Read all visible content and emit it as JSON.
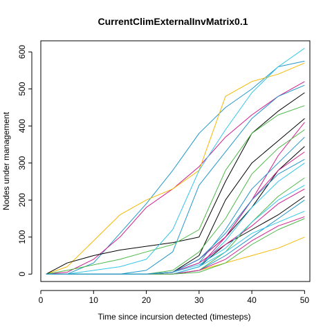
{
  "chart_data": {
    "type": "line",
    "title": "CurrentClimExternalInvMatrix0.1",
    "xlabel": "Time since incursion detected (timesteps)",
    "ylabel": "Nodes under management",
    "xlim": [
      0,
      51
    ],
    "ylim": [
      -20,
      630
    ],
    "xticks": [
      0,
      10,
      20,
      30,
      40,
      50
    ],
    "yticks": [
      0,
      100,
      200,
      300,
      400,
      500,
      600
    ],
    "grid": false,
    "legend": "none",
    "x": [
      1,
      5,
      10,
      15,
      20,
      25,
      30,
      35,
      40,
      45,
      50
    ],
    "series": [
      {
        "color": "#2196c9",
        "values": [
          0,
          0,
          30,
          110,
          190,
          280,
          380,
          450,
          500,
          560,
          575
        ]
      },
      {
        "color": "#d01c8b",
        "values": [
          0,
          5,
          40,
          100,
          180,
          230,
          290,
          370,
          430,
          480,
          520
        ]
      },
      {
        "color": "#f5b800",
        "values": [
          0,
          20,
          90,
          160,
          200,
          230,
          280,
          480,
          520,
          540,
          570
        ]
      },
      {
        "color": "#000000",
        "values": [
          0,
          30,
          50,
          65,
          75,
          85,
          100,
          250,
          380,
          440,
          490
        ]
      },
      {
        "color": "#000000",
        "values": [
          0,
          0,
          0,
          0,
          0,
          5,
          50,
          200,
          300,
          360,
          420
        ]
      },
      {
        "color": "#000000",
        "values": [
          0,
          0,
          0,
          0,
          0,
          5,
          40,
          100,
          180,
          280,
          345
        ]
      },
      {
        "color": "#000000",
        "values": [
          0,
          0,
          0,
          0,
          0,
          0,
          20,
          80,
          120,
          160,
          210
        ]
      },
      {
        "color": "#4db848",
        "values": [
          0,
          10,
          25,
          40,
          60,
          80,
          120,
          280,
          380,
          430,
          455
        ]
      },
      {
        "color": "#33c5e8",
        "values": [
          0,
          0,
          10,
          20,
          40,
          120,
          280,
          390,
          490,
          560,
          610
        ]
      },
      {
        "color": "#2196c9",
        "values": [
          0,
          0,
          0,
          0,
          10,
          60,
          240,
          330,
          420,
          480,
          510
        ]
      },
      {
        "color": "#f5b800",
        "values": [
          0,
          0,
          0,
          0,
          0,
          0,
          10,
          30,
          50,
          70,
          100
        ]
      },
      {
        "color": "#d01c8b",
        "values": [
          0,
          0,
          0,
          0,
          0,
          0,
          20,
          100,
          200,
          320,
          410
        ]
      },
      {
        "color": "#4db848",
        "values": [
          0,
          0,
          0,
          0,
          0,
          10,
          60,
          150,
          270,
          340,
          390
        ]
      },
      {
        "color": "#2196c9",
        "values": [
          0,
          0,
          0,
          0,
          0,
          5,
          30,
          120,
          230,
          300,
          370
        ]
      },
      {
        "color": "#d01c8b",
        "values": [
          0,
          0,
          0,
          0,
          0,
          5,
          40,
          100,
          200,
          280,
          330
        ]
      },
      {
        "color": "#33c5e8",
        "values": [
          0,
          0,
          0,
          0,
          0,
          0,
          20,
          90,
          180,
          250,
          300
        ]
      },
      {
        "color": "#4db848",
        "values": [
          0,
          0,
          0,
          0,
          0,
          0,
          10,
          60,
          140,
          210,
          260
        ]
      },
      {
        "color": "#d01c8b",
        "values": [
          0,
          0,
          0,
          0,
          0,
          5,
          30,
          80,
          130,
          190,
          230
        ]
      },
      {
        "color": "#2196c9",
        "values": [
          0,
          0,
          0,
          0,
          0,
          0,
          10,
          50,
          100,
          150,
          200
        ]
      },
      {
        "color": "#33c5e8",
        "values": [
          0,
          0,
          0,
          0,
          0,
          0,
          20,
          60,
          110,
          140,
          170
        ]
      },
      {
        "color": "#d01c8b",
        "values": [
          0,
          0,
          0,
          0,
          0,
          0,
          10,
          40,
          90,
          130,
          155
        ]
      },
      {
        "color": "#4db848",
        "values": [
          0,
          0,
          0,
          0,
          0,
          0,
          5,
          30,
          80,
          120,
          150
        ]
      },
      {
        "color": "#33c5e8",
        "values": [
          0,
          0,
          0,
          0,
          0,
          5,
          25,
          70,
          140,
          200,
          240
        ]
      },
      {
        "color": "#2196c9",
        "values": [
          0,
          0,
          0,
          0,
          0,
          5,
          40,
          110,
          200,
          270,
          310
        ]
      }
    ]
  }
}
